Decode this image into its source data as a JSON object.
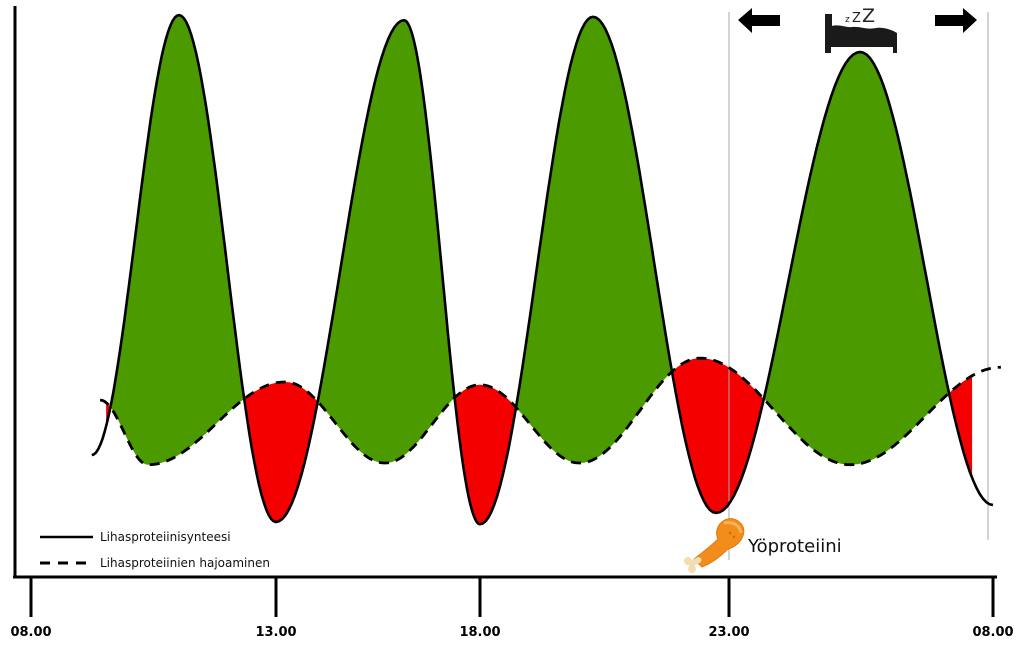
{
  "chart_data": {
    "type": "line",
    "title": "",
    "xlabel": "",
    "ylabel": "",
    "x_ticks": [
      {
        "label": "08.00",
        "hours": 0
      },
      {
        "label": "13.00",
        "hours": 5
      },
      {
        "label": "18.00",
        "hours": 10
      },
      {
        "label": "23.00",
        "hours": 15
      },
      {
        "label": "08.00",
        "hours": 24
      }
    ],
    "xlim_hours": [
      0,
      24
    ],
    "ylim": [
      0,
      100
    ],
    "y_axis_ticks": [],
    "grid": false,
    "series": [
      {
        "name": "Lihasproteiinisynteesi",
        "style": "solid",
        "points": [
          {
            "h": 1.24,
            "v": 21.5
          },
          {
            "h": 3.02,
            "v": 99.1
          },
          {
            "h": 5.0,
            "v": 9.7
          },
          {
            "h": 8.14,
            "v": 98.2
          },
          {
            "h": 10.0,
            "v": 9.3
          },
          {
            "h": 12.27,
            "v": 98.8
          },
          {
            "h": 14.74,
            "v": 11.3
          },
          {
            "h": 19.47,
            "v": 92.6
          },
          {
            "h": 24.0,
            "v": 12.7
          }
        ]
      },
      {
        "name": "Lihasproteiinien hajoaminen",
        "style": "dashed",
        "points": [
          {
            "h": 1.41,
            "v": 31.2
          },
          {
            "h": 2.39,
            "v": 19.8
          },
          {
            "h": 5.22,
            "v": 34.4
          },
          {
            "h": 7.67,
            "v": 20.1
          },
          {
            "h": 10.0,
            "v": 33.9
          },
          {
            "h": 12.0,
            "v": 20.1
          },
          {
            "h": 14.42,
            "v": 38.6
          },
          {
            "h": 19.13,
            "v": 19.8
          },
          {
            "h": 24.27,
            "v": 37.0
          }
        ]
      }
    ],
    "fills": {
      "anabolic_color": "#4a9a00",
      "catabolic_color": "#f50000",
      "description": "green where synthesis exceeds breakdown, red where breakdown exceeds synthesis"
    },
    "legend": {
      "position": "bottom-left",
      "entries": [
        {
          "label": "Lihasproteiinisynteesi",
          "style": "solid"
        },
        {
          "label": "Lihasproteiinien hajoaminen",
          "style": "dashed"
        }
      ]
    },
    "annotations": [
      {
        "text": "Yöproteiini",
        "icon": "chicken-drumstick-icon",
        "at_hours": 15
      },
      {
        "icon": "sleeping-bed-icon",
        "text": "zZZ",
        "range_hours": [
          15,
          24
        ]
      },
      {
        "icon": "arrow-left-icon"
      },
      {
        "icon": "arrow-right-icon"
      }
    ],
    "sleep_marker_lines_hours": [
      15,
      24
    ]
  }
}
